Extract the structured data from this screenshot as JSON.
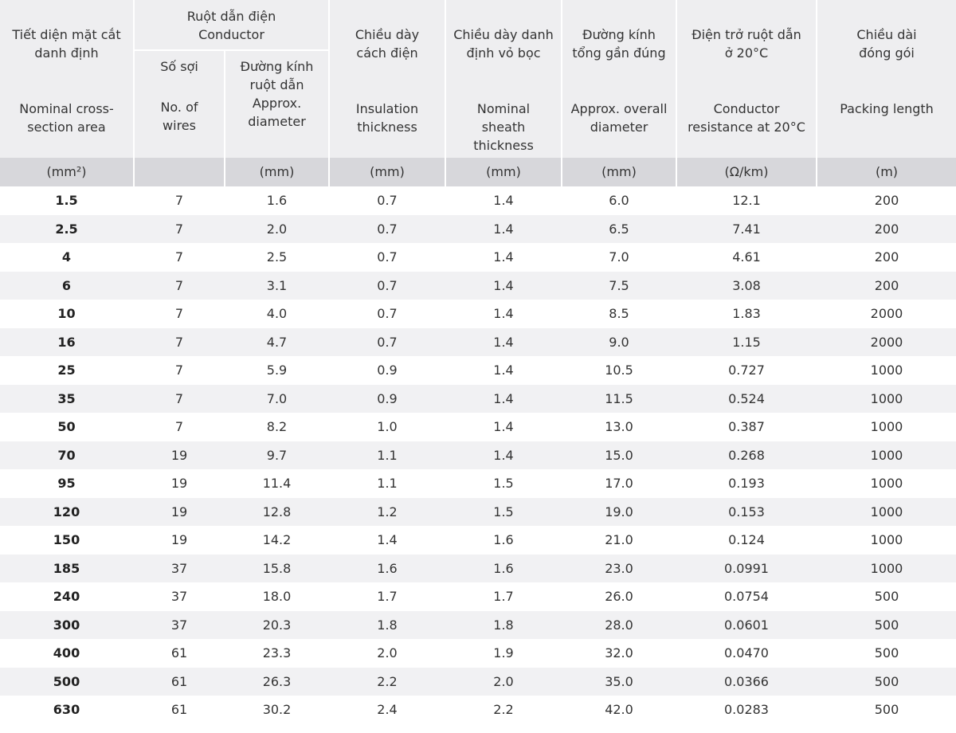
{
  "header": {
    "col0": {
      "vi": [
        "Tiết diện mặt cắt",
        "danh định"
      ],
      "en": [
        "Nominal cross-",
        "section area"
      ]
    },
    "conductor": {
      "vi": "Ruột dẫn điện",
      "en": "Conductor"
    },
    "col1": {
      "vi": "Số sợi",
      "en": [
        "No. of",
        "wires"
      ]
    },
    "col2": {
      "vi": [
        "Đường kính",
        "ruột dẫn"
      ],
      "en": [
        "Approx.",
        "diameter"
      ]
    },
    "col3": {
      "vi": [
        "Chiều dày",
        "cách điện"
      ],
      "en": [
        "Insulation",
        "thickness"
      ]
    },
    "col4": {
      "vi": [
        "Chiều dày danh",
        "định vỏ bọc"
      ],
      "en": [
        "Nominal",
        "sheath",
        "thickness"
      ]
    },
    "col5": {
      "vi": [
        "Đường kính",
        "tổng gần đúng"
      ],
      "en": [
        "Approx. overall",
        "diameter"
      ]
    },
    "col6": {
      "vi": [
        "Điện trở ruột dẫn",
        "ở 20°C"
      ],
      "en": [
        "Conductor",
        "resistance at 20°C"
      ]
    },
    "col7": {
      "vi": [
        "Chiều dài",
        "đóng gói"
      ],
      "en": [
        "Packing length"
      ]
    }
  },
  "units": [
    "(mm²)",
    "",
    "(mm)",
    "(mm)",
    "(mm)",
    "(mm)",
    "(Ω/km)",
    "(m)"
  ],
  "rows": [
    [
      "1.5",
      "7",
      "1.6",
      "0.7",
      "1.4",
      "6.0",
      "12.1",
      "200"
    ],
    [
      "2.5",
      "7",
      "2.0",
      "0.7",
      "1.4",
      "6.5",
      "7.41",
      "200"
    ],
    [
      "4",
      "7",
      "2.5",
      "0.7",
      "1.4",
      "7.0",
      "4.61",
      "200"
    ],
    [
      "6",
      "7",
      "3.1",
      "0.7",
      "1.4",
      "7.5",
      "3.08",
      "200"
    ],
    [
      "10",
      "7",
      "4.0",
      "0.7",
      "1.4",
      "8.5",
      "1.83",
      "2000"
    ],
    [
      "16",
      "7",
      "4.7",
      "0.7",
      "1.4",
      "9.0",
      "1.15",
      "2000"
    ],
    [
      "25",
      "7",
      "5.9",
      "0.9",
      "1.4",
      "10.5",
      "0.727",
      "1000"
    ],
    [
      "35",
      "7",
      "7.0",
      "0.9",
      "1.4",
      "11.5",
      "0.524",
      "1000"
    ],
    [
      "50",
      "7",
      "8.2",
      "1.0",
      "1.4",
      "13.0",
      "0.387",
      "1000"
    ],
    [
      "70",
      "19",
      "9.7",
      "1.1",
      "1.4",
      "15.0",
      "0.268",
      "1000"
    ],
    [
      "95",
      "19",
      "11.4",
      "1.1",
      "1.5",
      "17.0",
      "0.193",
      "1000"
    ],
    [
      "120",
      "19",
      "12.8",
      "1.2",
      "1.5",
      "19.0",
      "0.153",
      "1000"
    ],
    [
      "150",
      "19",
      "14.2",
      "1.4",
      "1.6",
      "21.0",
      "0.124",
      "1000"
    ],
    [
      "185",
      "37",
      "15.8",
      "1.6",
      "1.6",
      "23.0",
      "0.0991",
      "1000"
    ],
    [
      "240",
      "37",
      "18.0",
      "1.7",
      "1.7",
      "26.0",
      "0.0754",
      "500"
    ],
    [
      "300",
      "37",
      "20.3",
      "1.8",
      "1.8",
      "28.0",
      "0.0601",
      "500"
    ],
    [
      "400",
      "61",
      "23.3",
      "2.0",
      "1.9",
      "32.0",
      "0.0470",
      "500"
    ],
    [
      "500",
      "61",
      "26.3",
      "2.2",
      "2.0",
      "35.0",
      "0.0366",
      "500"
    ],
    [
      "630",
      "61",
      "30.2",
      "2.4",
      "2.2",
      "42.0",
      "0.0283",
      "500"
    ]
  ]
}
